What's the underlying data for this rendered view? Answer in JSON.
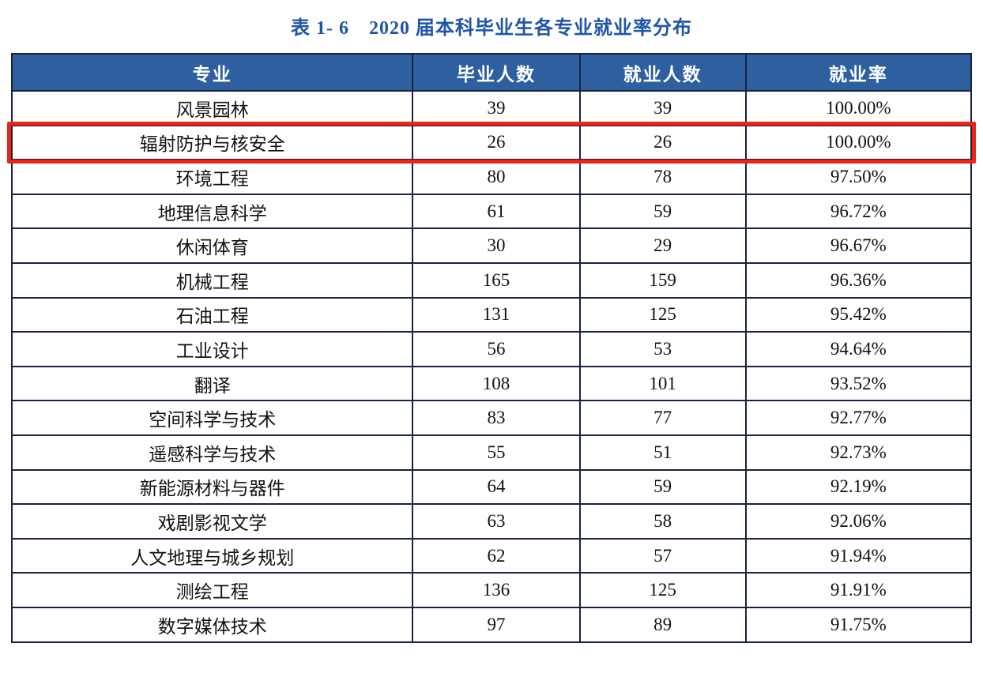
{
  "page": {
    "title": "表 1- 6　2020 届本科毕业生各专业就业率分布"
  },
  "table": {
    "columns": [
      "专业",
      "毕业人数",
      "就业人数",
      "就业率"
    ],
    "rows": [
      {
        "major": "风景园林",
        "graduates": "39",
        "employed": "39",
        "rate": "100.00%",
        "highlight": false
      },
      {
        "major": "辐射防护与核安全",
        "graduates": "26",
        "employed": "26",
        "rate": "100.00%",
        "highlight": true
      },
      {
        "major": "环境工程",
        "graduates": "80",
        "employed": "78",
        "rate": "97.50%",
        "highlight": false
      },
      {
        "major": "地理信息科学",
        "graduates": "61",
        "employed": "59",
        "rate": "96.72%",
        "highlight": false
      },
      {
        "major": "休闲体育",
        "graduates": "30",
        "employed": "29",
        "rate": "96.67%",
        "highlight": false
      },
      {
        "major": "机械工程",
        "graduates": "165",
        "employed": "159",
        "rate": "96.36%",
        "highlight": false
      },
      {
        "major": "石油工程",
        "graduates": "131",
        "employed": "125",
        "rate": "95.42%",
        "highlight": false
      },
      {
        "major": "工业设计",
        "graduates": "56",
        "employed": "53",
        "rate": "94.64%",
        "highlight": false
      },
      {
        "major": "翻译",
        "graduates": "108",
        "employed": "101",
        "rate": "93.52%",
        "highlight": false
      },
      {
        "major": "空间科学与技术",
        "graduates": "83",
        "employed": "77",
        "rate": "92.77%",
        "highlight": false
      },
      {
        "major": "遥感科学与技术",
        "graduates": "55",
        "employed": "51",
        "rate": "92.73%",
        "highlight": false
      },
      {
        "major": "新能源材料与器件",
        "graduates": "64",
        "employed": "59",
        "rate": "92.19%",
        "highlight": false
      },
      {
        "major": "戏剧影视文学",
        "graduates": "63",
        "employed": "58",
        "rate": "92.06%",
        "highlight": false
      },
      {
        "major": "人文地理与城乡规划",
        "graduates": "62",
        "employed": "57",
        "rate": "91.94%",
        "highlight": false
      },
      {
        "major": "测绘工程",
        "graduates": "136",
        "employed": "125",
        "rate": "91.91%",
        "highlight": false
      },
      {
        "major": "数字媒体技术",
        "graduates": "97",
        "employed": "89",
        "rate": "91.75%",
        "highlight": false
      }
    ]
  },
  "chart_data": {
    "type": "table",
    "title": "表 1- 6　2020 届本科毕业生各专业就业率分布",
    "columns": [
      "专业",
      "毕业人数",
      "就业人数",
      "就业率"
    ],
    "rows": [
      [
        "风景园林",
        39,
        39,
        "100.00%"
      ],
      [
        "辐射防护与核安全",
        26,
        26,
        "100.00%"
      ],
      [
        "环境工程",
        80,
        78,
        "97.50%"
      ],
      [
        "地理信息科学",
        61,
        59,
        "96.72%"
      ],
      [
        "休闲体育",
        30,
        29,
        "96.67%"
      ],
      [
        "机械工程",
        165,
        159,
        "96.36%"
      ],
      [
        "石油工程",
        131,
        125,
        "95.42%"
      ],
      [
        "工业设计",
        56,
        53,
        "94.64%"
      ],
      [
        "翻译",
        108,
        101,
        "93.52%"
      ],
      [
        "空间科学与技术",
        83,
        77,
        "92.77%"
      ],
      [
        "遥感科学与技术",
        55,
        51,
        "92.73%"
      ],
      [
        "新能源材料与器件",
        64,
        59,
        "92.19%"
      ],
      [
        "戏剧影视文学",
        63,
        58,
        "92.06%"
      ],
      [
        "人文地理与城乡规划",
        62,
        57,
        "91.94%"
      ],
      [
        "测绘工程",
        136,
        125,
        "91.91%"
      ],
      [
        "数字媒体技术",
        97,
        89,
        "91.75%"
      ]
    ],
    "highlighted_row": "辐射防护与核安全",
    "notes": "Row for 辐射防护与核安全 is outlined with a red rectangle"
  },
  "colors": {
    "header_bg": "#2e609f",
    "title_text": "#1f55a8",
    "border": "#17243f",
    "highlight": "#e82517"
  }
}
